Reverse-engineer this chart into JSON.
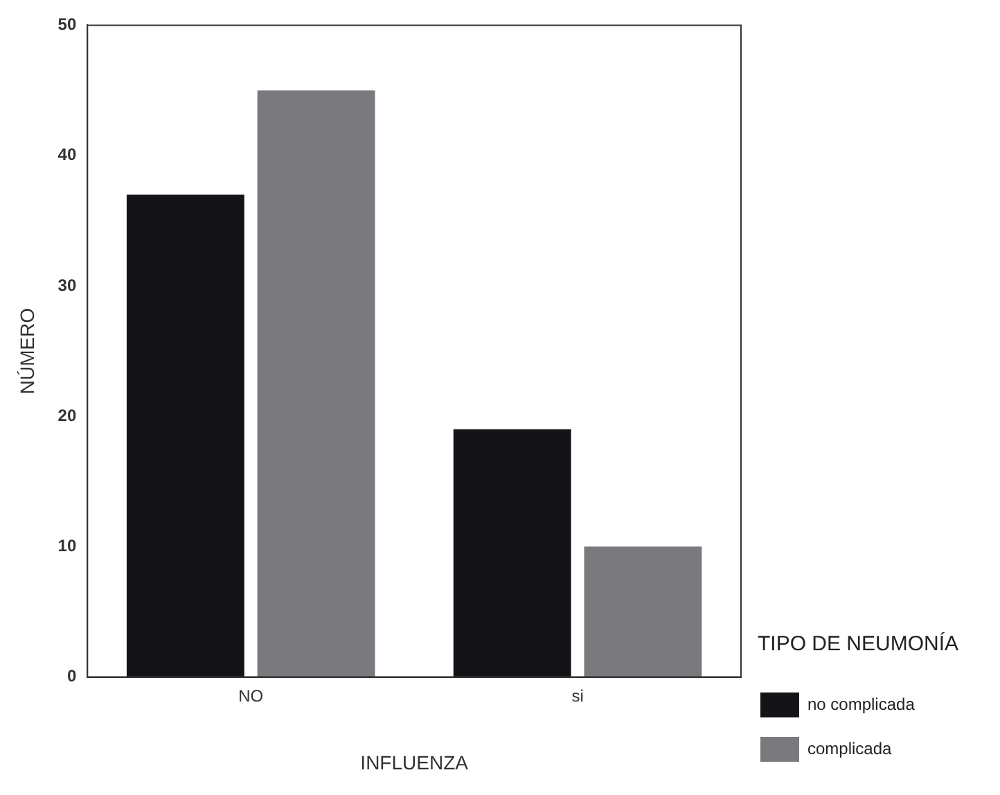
{
  "chart_data": {
    "type": "bar",
    "xlabel": "INFLUENZA",
    "ylabel": "NÚMERO",
    "legend_title": "TIPO DE NEUMONÍA",
    "categories": [
      "NO",
      "si"
    ],
    "series": [
      {
        "name": "no complicada",
        "color": "#141418",
        "values": [
          37,
          19
        ]
      },
      {
        "name": "complicada",
        "color": "#7a7a7e",
        "values": [
          45,
          10
        ]
      }
    ],
    "ylim": [
      0,
      50
    ],
    "yticks": [
      0,
      10,
      20,
      30,
      40,
      50
    ],
    "grid": false,
    "legend": "bottom right"
  }
}
